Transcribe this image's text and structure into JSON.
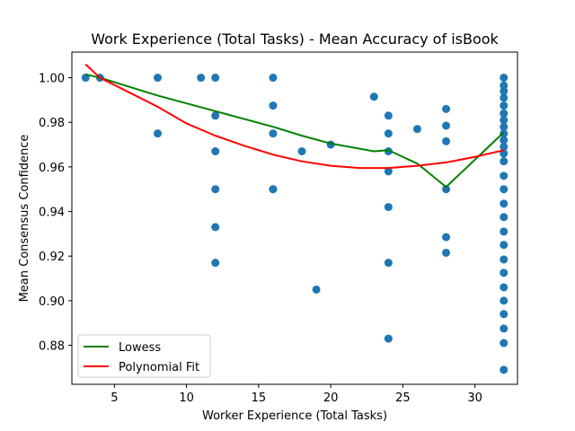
{
  "chart_data": {
    "type": "scatter",
    "title": "Work Experience (Total Tasks) - Mean Accuracy of isBook",
    "xlabel": "Worker Experience (Total Tasks)",
    "ylabel": "Mean Consensus Confidence",
    "xlim": [
      2.05,
      32.95
    ],
    "ylim": [
      0.8625,
      1.0115
    ],
    "xticks": [
      5,
      10,
      15,
      20,
      25,
      30
    ],
    "xtick_labels": [
      "5",
      "10",
      "15",
      "20",
      "25",
      "30"
    ],
    "yticks": [
      0.88,
      0.9,
      0.92,
      0.94,
      0.96,
      0.98,
      1.0
    ],
    "ytick_labels": [
      "0.88",
      "0.90",
      "0.92",
      "0.94",
      "0.96",
      "0.98",
      "1.00"
    ],
    "grid": false,
    "legend_position": "lower-left",
    "points": {
      "color": "#1f77b4",
      "x": [
        3,
        4,
        8,
        8,
        11,
        12,
        12,
        12,
        12,
        12,
        12,
        16,
        16,
        16,
        16,
        16,
        18,
        19,
        20,
        23,
        24,
        24,
        24,
        24,
        24,
        24,
        24,
        26,
        28,
        28,
        28,
        28,
        28,
        28,
        32,
        32,
        32,
        32,
        32,
        32,
        32,
        32,
        32,
        32,
        32,
        32,
        32,
        32,
        32,
        32,
        32,
        32,
        32,
        32,
        32,
        32,
        32,
        32,
        32,
        32,
        32
      ],
      "y": [
        1.0,
        1.0,
        1.0,
        0.975,
        1.0,
        1.0,
        0.983,
        0.967,
        0.95,
        0.933,
        0.917,
        1.0,
        0.9875,
        0.975,
        0.95,
        0.95,
        0.967,
        0.905,
        0.97,
        0.9915,
        0.983,
        0.975,
        0.967,
        0.958,
        0.942,
        0.917,
        0.883,
        0.977,
        0.986,
        0.9785,
        0.9715,
        0.95,
        0.9285,
        0.9215,
        1.0,
        0.994,
        0.9875,
        0.981,
        0.975,
        0.969,
        0.9625,
        0.956,
        0.95,
        0.9435,
        0.9375,
        0.931,
        0.925,
        0.9185,
        0.9125,
        0.906,
        0.9,
        0.894,
        0.8875,
        0.881,
        0.869,
        0.9965,
        0.991,
        0.984,
        0.978,
        0.972,
        0.966
      ]
    },
    "series": [
      {
        "name": "Lowess",
        "color": "#008000",
        "x": [
          3,
          4,
          8,
          12,
          16,
          18,
          20,
          23,
          24,
          26,
          28,
          32
        ],
        "y": [
          1.0015,
          1.0,
          0.992,
          0.985,
          0.978,
          0.974,
          0.9705,
          0.967,
          0.9675,
          0.9615,
          0.951,
          0.9755
        ]
      },
      {
        "name": "Polynomial Fit",
        "color": "#ff0000",
        "x": [
          3,
          4,
          6,
          8,
          10,
          12,
          14,
          16,
          18,
          20,
          22,
          24,
          26,
          28,
          30,
          32
        ],
        "y": [
          1.006,
          1.0,
          0.9935,
          0.987,
          0.9795,
          0.974,
          0.9695,
          0.9655,
          0.9625,
          0.9605,
          0.9595,
          0.9595,
          0.9605,
          0.962,
          0.9645,
          0.9675
        ]
      }
    ]
  }
}
